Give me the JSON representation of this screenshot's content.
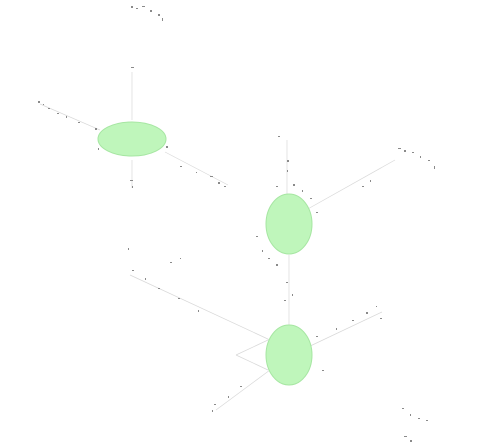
{
  "diagram": {
    "colors": {
      "node_fill": "#b9f5b5",
      "node_stroke": "#a6e6a2",
      "edge": "#cfcfcf",
      "tick": "#8a8a8a",
      "label": "#777777"
    },
    "labels": {
      "top": "",
      "left_top": "",
      "right_mid": "",
      "bottom_right": ""
    },
    "nodes": [
      {
        "id": "node-left"
      },
      {
        "id": "node-middle"
      },
      {
        "id": "node-bottom"
      }
    ]
  }
}
